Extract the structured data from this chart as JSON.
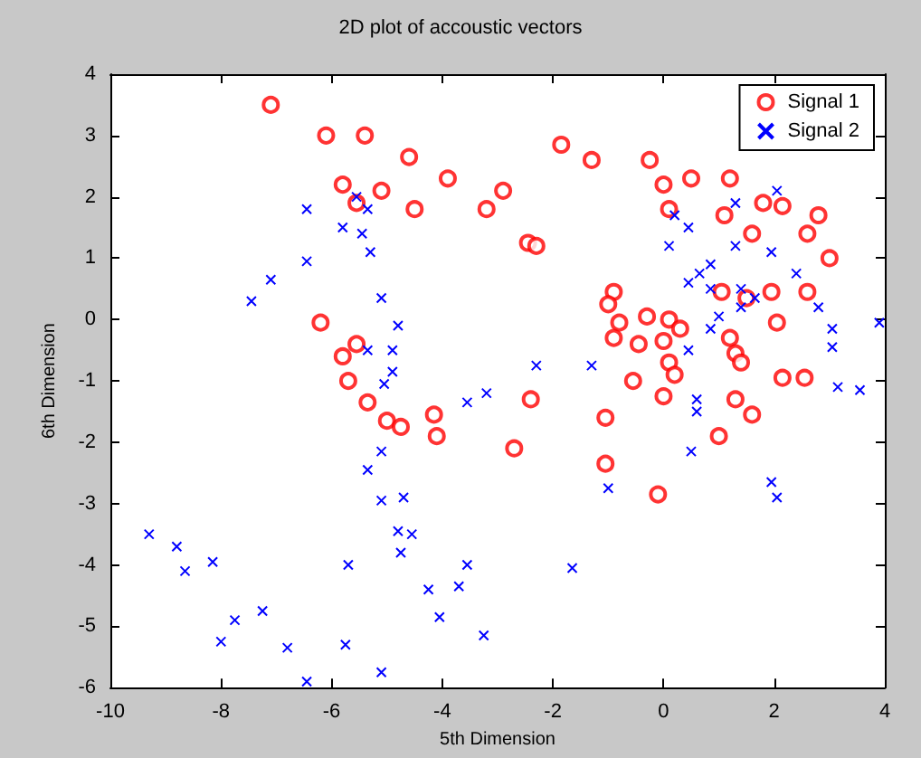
{
  "chart_data": {
    "type": "scatter",
    "title": "2D plot of accoustic vectors",
    "xlabel": "5th Dimension",
    "ylabel": "6th Dimension",
    "xlim": [
      -10,
      4
    ],
    "ylim": [
      -6,
      4
    ],
    "xticks": [
      -10,
      -8,
      -6,
      -4,
      -2,
      0,
      2,
      4
    ],
    "yticks": [
      -6,
      -5,
      -4,
      -3,
      -2,
      -1,
      0,
      1,
      2,
      3,
      4
    ],
    "grid": false,
    "legend": "top right",
    "series": [
      {
        "name": "Signal 1",
        "color": "#ff0000",
        "marker": "circle",
        "x": [
          -7.1,
          -6.1,
          -5.4,
          -4.6,
          -5.8,
          -5.1,
          -5.55,
          -4.5,
          -3.9,
          -3.2,
          -2.9,
          -6.2,
          -5.8,
          -5.55,
          -5.7,
          -1.85,
          -1.3,
          -0.25,
          -2.45,
          -2.3,
          0.0,
          0.5,
          1.2,
          1.8,
          2.15,
          2.8,
          3.0,
          2.6,
          1.6,
          1.1,
          0.1,
          -0.9,
          -1.0,
          -0.8,
          -0.3,
          0.1,
          0.3,
          0.0,
          -0.45,
          -0.9,
          1.2,
          1.3,
          1.5,
          1.05,
          1.95,
          2.05,
          2.6,
          0.1,
          1.4,
          -0.55,
          0.2,
          0.0,
          1.3,
          1.6,
          1.0,
          -1.05,
          -1.05,
          -0.1,
          -2.4,
          -2.7,
          2.55,
          2.15,
          -5.35,
          -5.0,
          -4.75,
          -4.15,
          -4.1
        ],
        "values": [
          3.5,
          3.0,
          3.0,
          2.65,
          2.2,
          2.1,
          1.9,
          1.8,
          2.3,
          1.8,
          2.1,
          -0.05,
          -0.6,
          -0.4,
          -1.0,
          2.85,
          2.6,
          2.6,
          1.25,
          1.2,
          2.2,
          2.3,
          2.3,
          1.9,
          1.85,
          1.7,
          1.0,
          1.4,
          1.4,
          1.7,
          1.8,
          0.45,
          0.25,
          -0.05,
          0.05,
          0.0,
          -0.15,
          -0.35,
          -0.4,
          -0.3,
          -0.3,
          -0.55,
          0.35,
          0.45,
          0.45,
          -0.05,
          0.45,
          -0.7,
          -0.7,
          -1.0,
          -0.9,
          -1.25,
          -1.3,
          -1.55,
          -1.9,
          -1.6,
          -2.35,
          -2.85,
          -1.3,
          -2.1,
          -0.95,
          -0.95,
          -1.35,
          -1.65,
          -1.75,
          -1.55,
          -1.9
        ]
      },
      {
        "name": "Signal 2",
        "color": "#0000ff",
        "marker": "cross",
        "x": [
          -6.45,
          -5.8,
          -5.45,
          -5.3,
          -6.45,
          -7.1,
          -7.45,
          -5.1,
          -4.8,
          -4.9,
          -5.35,
          -5.55,
          -5.35,
          -5.05,
          -4.9,
          -3.55,
          -3.2,
          -5.1,
          -5.35,
          -5.1,
          -4.7,
          -4.8,
          -4.55,
          -4.75,
          -9.3,
          -8.8,
          -8.65,
          -8.15,
          -5.7,
          -4.25,
          -3.7,
          -3.55,
          -4.05,
          -7.75,
          -7.25,
          -8.0,
          -6.8,
          -5.75,
          -3.25,
          -6.45,
          -5.1,
          -1.65,
          -1.0,
          0.5,
          0.6,
          0.6,
          1.95,
          2.05,
          3.15,
          3.55,
          -2.3,
          -1.3,
          0.1,
          0.45,
          0.85,
          1.3,
          0.45,
          0.85,
          0.65,
          1.0,
          0.85,
          1.4,
          1.65,
          1.95,
          2.4,
          2.8,
          3.05,
          3.9,
          2.05,
          0.2,
          1.3,
          1.4,
          3.05,
          0.45
        ],
        "values": [
          1.8,
          1.5,
          1.4,
          1.1,
          0.95,
          0.65,
          0.3,
          0.35,
          -0.1,
          -0.5,
          -0.5,
          2.0,
          1.8,
          -1.05,
          -0.85,
          -1.35,
          -1.2,
          -2.15,
          -2.45,
          -2.95,
          -2.9,
          -3.45,
          -3.5,
          -3.8,
          -3.5,
          -3.7,
          -4.1,
          -3.95,
          -4.0,
          -4.4,
          -4.35,
          -4.0,
          -4.85,
          -4.9,
          -4.75,
          -5.25,
          -5.35,
          -5.3,
          -5.15,
          -5.9,
          -5.75,
          -4.05,
          -2.75,
          -2.15,
          -1.3,
          -1.5,
          -2.65,
          -2.9,
          -1.1,
          -1.15,
          -0.75,
          -0.75,
          1.2,
          1.5,
          0.9,
          1.2,
          0.6,
          0.5,
          0.75,
          0.05,
          -0.15,
          0.2,
          0.35,
          1.1,
          0.75,
          0.2,
          -0.15,
          -0.05,
          2.1,
          1.7,
          1.9,
          0.5,
          -0.45,
          -0.5
        ]
      }
    ]
  }
}
